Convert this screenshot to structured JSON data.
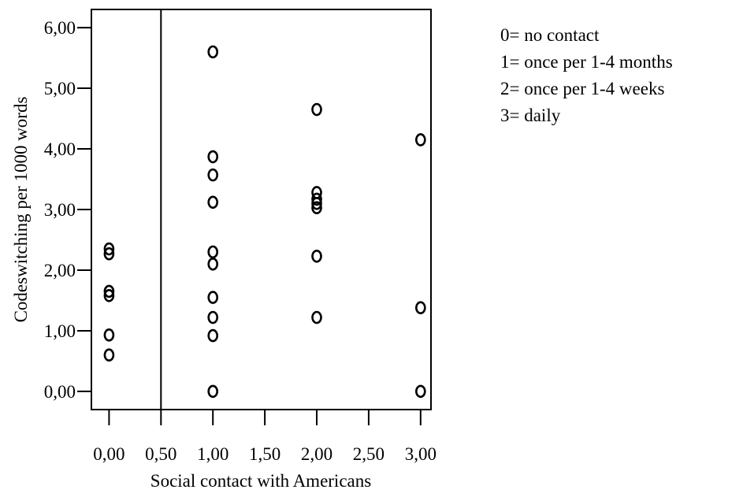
{
  "chart_data": {
    "type": "scatter",
    "title": "",
    "xlabel": "Social contact with Americans",
    "ylabel": "Codeswitching per 1000 words",
    "xlim": [
      -0.17,
      3.1
    ],
    "ylim": [
      -0.3,
      6.3
    ],
    "x_ticks": [
      0,
      0.5,
      1,
      1.5,
      2,
      2.5,
      3
    ],
    "x_tick_labels": [
      "0,00",
      "0,50",
      "1,00",
      "1,50",
      "2,00",
      "2,50",
      "3,00"
    ],
    "y_ticks": [
      0,
      1,
      2,
      3,
      4,
      5,
      6
    ],
    "y_tick_labels": [
      "0,00",
      "1,00",
      "2,00",
      "3,00",
      "4,00",
      "5,00",
      "6,00"
    ],
    "reference_line_x": 0.5,
    "marker": "open-circle",
    "grid": false,
    "points": [
      {
        "x": 0,
        "y": 2.35
      },
      {
        "x": 0,
        "y": 2.27
      },
      {
        "x": 0,
        "y": 1.65
      },
      {
        "x": 0,
        "y": 1.58
      },
      {
        "x": 0,
        "y": 0.93
      },
      {
        "x": 0,
        "y": 0.6
      },
      {
        "x": 1,
        "y": 5.6
      },
      {
        "x": 1,
        "y": 3.87
      },
      {
        "x": 1,
        "y": 3.57
      },
      {
        "x": 1,
        "y": 3.12
      },
      {
        "x": 1,
        "y": 2.3
      },
      {
        "x": 1,
        "y": 2.1
      },
      {
        "x": 1,
        "y": 1.55
      },
      {
        "x": 1,
        "y": 1.22
      },
      {
        "x": 1,
        "y": 0.92
      },
      {
        "x": 1,
        "y": 0.0
      },
      {
        "x": 2,
        "y": 4.65
      },
      {
        "x": 2,
        "y": 3.28
      },
      {
        "x": 2,
        "y": 3.17
      },
      {
        "x": 2,
        "y": 3.1
      },
      {
        "x": 2,
        "y": 3.03
      },
      {
        "x": 2,
        "y": 2.23
      },
      {
        "x": 2,
        "y": 1.22
      },
      {
        "x": 3,
        "y": 4.15
      },
      {
        "x": 3,
        "y": 1.38
      },
      {
        "x": 3,
        "y": 0.0
      }
    ],
    "legend_position": "top-right",
    "legend": [
      "0= no contact",
      "1= once per 1-4 months",
      "2= once per 1-4 weeks",
      "3= daily"
    ]
  }
}
